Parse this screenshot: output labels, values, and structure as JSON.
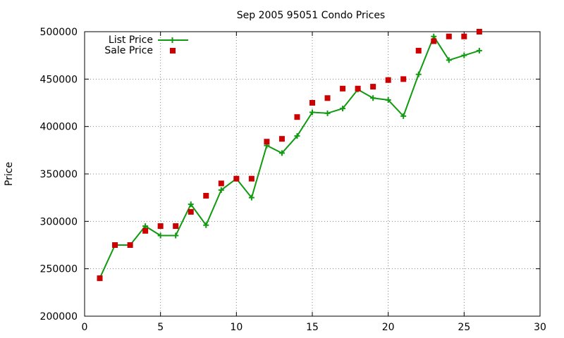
{
  "chart_data": {
    "type": "line",
    "title": "Sep 2005 95051 Condo Prices",
    "xlabel": "",
    "ylabel": "Price",
    "xlim": [
      0,
      30
    ],
    "ylim": [
      200000,
      500000
    ],
    "x_ticks": [
      0,
      5,
      10,
      15,
      20,
      25,
      30
    ],
    "y_ticks": [
      200000,
      250000,
      300000,
      350000,
      400000,
      450000,
      500000
    ],
    "grid": true,
    "legend_position": "top-left",
    "series": [
      {
        "name": "List Price",
        "style": "line-with-plus-markers",
        "color": "#109a10",
        "x": [
          1,
          2,
          3,
          4,
          5,
          6,
          7,
          8,
          9,
          10,
          11,
          12,
          13,
          14,
          15,
          16,
          17,
          18,
          19,
          20,
          21,
          22,
          23,
          24,
          25,
          26
        ],
        "values": [
          240000,
          275000,
          275000,
          295000,
          285000,
          285000,
          318000,
          296000,
          333000,
          345000,
          325000,
          380000,
          372000,
          390000,
          415000,
          414000,
          419000,
          439000,
          430000,
          428000,
          411000,
          455000,
          495000,
          470000,
          475000,
          480000
        ]
      },
      {
        "name": "Sale Price",
        "style": "square-markers",
        "color": "#cc0000",
        "x": [
          1,
          2,
          3,
          4,
          5,
          6,
          7,
          8,
          9,
          10,
          11,
          12,
          13,
          14,
          15,
          16,
          17,
          18,
          19,
          20,
          21,
          22,
          23,
          24,
          25,
          26
        ],
        "values": [
          240000,
          275000,
          275000,
          290000,
          295000,
          295000,
          310000,
          327000,
          340000,
          345000,
          345000,
          384000,
          387000,
          410000,
          425000,
          430000,
          440000,
          440000,
          442000,
          449000,
          450000,
          480000,
          490000,
          495000,
          495000,
          500000
        ]
      }
    ]
  }
}
